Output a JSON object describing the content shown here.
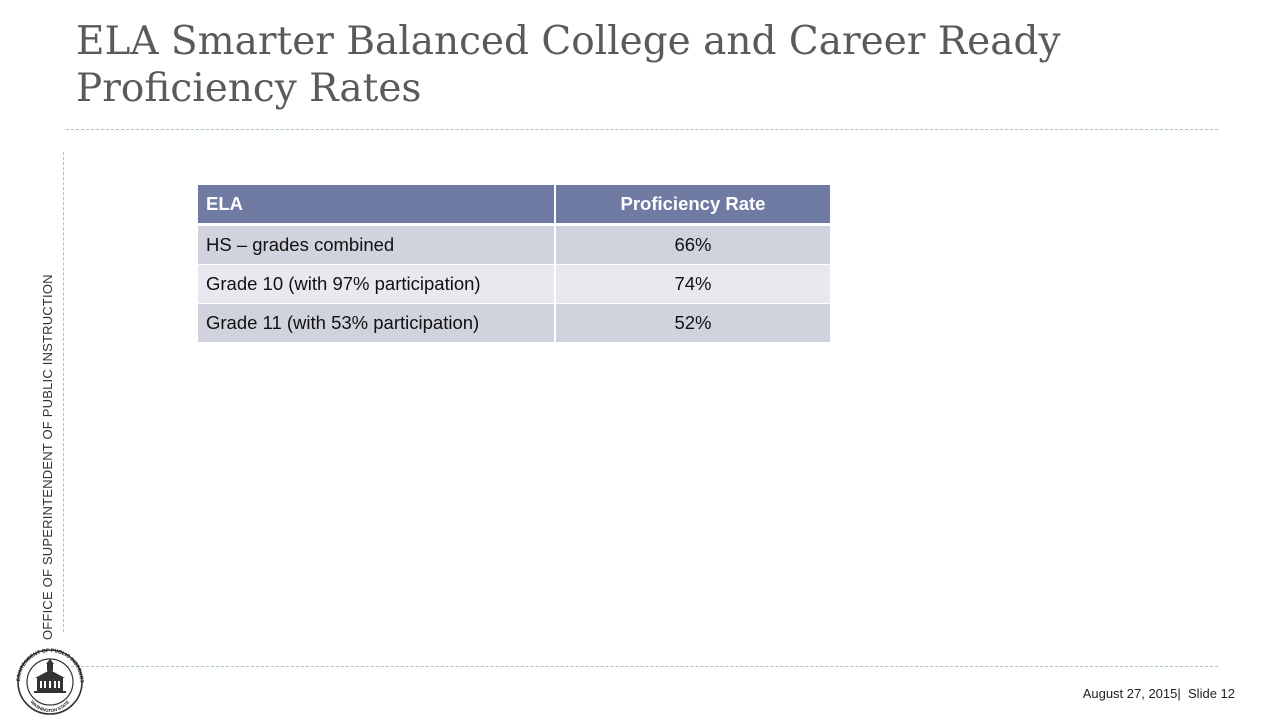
{
  "slide": {
    "title": "ELA Smarter Balanced College and Career Ready Proficiency Rates",
    "side_text": "OFFICE OF SUPERINTENDENT OF PUBLIC INSTRUCTION",
    "footer": {
      "date": "August 27, 2015",
      "separator": "|",
      "slide_label": "Slide 12"
    },
    "seal": {
      "text_top": "SUPERINTENDENT OF PUBLIC INSTRUCTION",
      "text_bottom": "WASHINGTON STATE"
    }
  },
  "table": {
    "headers": [
      "ELA",
      "Proficiency Rate"
    ],
    "rows": [
      [
        "HS – grades combined",
        "66%"
      ],
      [
        "Grade 10 (with 97% participation)",
        "74%"
      ],
      [
        "Grade 11 (with 53% participation)",
        "52%"
      ]
    ]
  },
  "colors": {
    "header_bg": "#6f7ba3",
    "row_dark": "#d0d3dd",
    "row_light": "#e8e9ee",
    "rule": "#a9c1cc"
  }
}
